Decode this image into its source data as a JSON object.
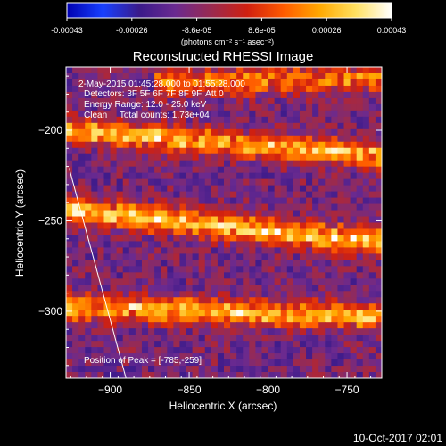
{
  "app": {
    "timestamp": "10-Oct-2017 02:01"
  },
  "colorbar": {
    "colors": [
      "#0000b0",
      "#1840ff",
      "#3a1a8a",
      "#6a2a90",
      "#9a2a50",
      "#d02010",
      "#ff5a00",
      "#ffa800",
      "#ffe060",
      "#ffffff"
    ],
    "tick_labels": [
      "-0.00043",
      "-0.00026",
      "-8.6e-05",
      "8.6e-05",
      "0.00026",
      "0.00043"
    ],
    "unit_label": "(photons cm⁻² s⁻¹ asec⁻²)"
  },
  "chart_data": {
    "type": "heatmap",
    "title": "Reconstructed RHESSI Image",
    "xlabel": "Heliocentric X (arcsec)",
    "ylabel": "Heliocentric Y (arcsec)",
    "xlim": [
      -928,
      -728
    ],
    "ylim": [
      -337,
      -165
    ],
    "xticks": [
      -900,
      -850,
      -800,
      -750
    ],
    "yticks": [
      -200,
      -250,
      -300
    ],
    "value_range": [
      -0.00043,
      0.00043
    ],
    "limb_line": [
      [
        -926,
        -221
      ],
      [
        -890,
        -337
      ]
    ],
    "bright_bands": [
      {
        "x_range": [
          -928,
          -728
        ],
        "y_at_xmin": -200,
        "y_at_xmax": -214,
        "peak": 0.00038
      },
      {
        "x_range": [
          -928,
          -728
        ],
        "y_at_xmin": -244,
        "y_at_xmax": -262,
        "peak": 0.00043
      },
      {
        "x_range": [
          -928,
          -728
        ],
        "y_at_xmin": -298,
        "y_at_xmax": -303,
        "peak": 0.00038
      },
      {
        "x_range": [
          -870,
          -728
        ],
        "y_at_xmin": -175,
        "y_at_xmax": -172,
        "peak": 0.0003
      }
    ],
    "peak_position": [
      -785,
      -259
    ],
    "annotations": {
      "time": "2-May-2015 01:45:28.000 to 01:55:28.000",
      "detectors": "Detectors: 3F 5F 6F 7F 8F 9F, Att 0",
      "energy": "Energy Range: 12.0 - 25.0 keV",
      "clean": "Clean     Total counts: 1.73e+04",
      "peak": "Position of Peak = [-785,-259]"
    }
  }
}
